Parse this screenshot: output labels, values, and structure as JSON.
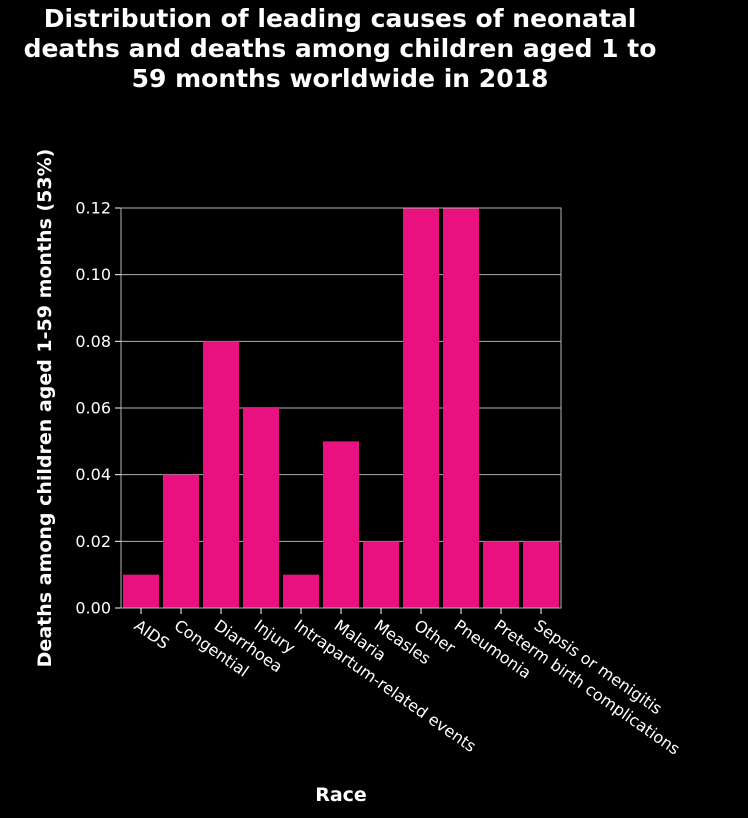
{
  "chart_data": {
    "type": "bar",
    "title": "Distribution of leading causes of neonatal\ndeaths and deaths among children aged 1 to\n59 months worldwide in 2018",
    "xlabel": "Race",
    "ylabel": "Deaths among children aged 1-59 months (53%)",
    "categories": [
      "AIDS",
      "Congential",
      "Diarrhoea",
      "Injury",
      "Intrapartum-related events",
      "Malaria",
      "Measles",
      "Other",
      "Pneumonia",
      "Preterm birth complications",
      "Sepsis or menigitis"
    ],
    "values": [
      0.01,
      0.04,
      0.08,
      0.06,
      0.01,
      0.05,
      0.02,
      0.12,
      0.12,
      0.02,
      0.02
    ],
    "ylim": [
      0,
      0.12
    ],
    "yticks": [
      "0.00",
      "0.02",
      "0.04",
      "0.06",
      "0.08",
      "0.10",
      "0.12"
    ],
    "grid": true,
    "legend": "none",
    "colors": {
      "bar": "#e8117f",
      "background": "#000000",
      "grid": "#b3b3b3",
      "text": "#ffffff"
    }
  }
}
